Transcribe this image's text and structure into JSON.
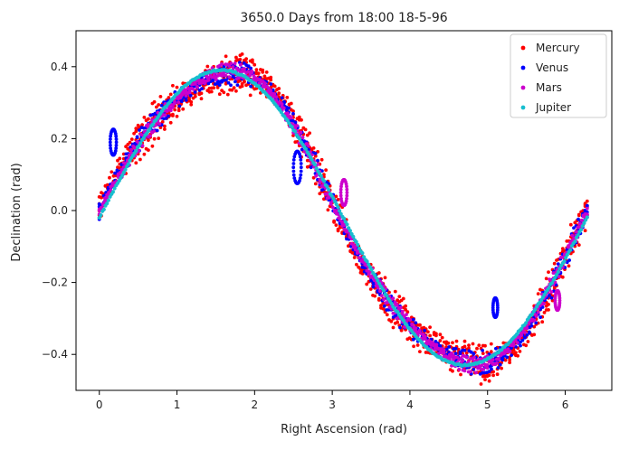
{
  "chart_data": {
    "type": "scatter",
    "title": "3650.0 Days from  18:00 18-5-96",
    "xlabel": "Right Ascension (rad)",
    "ylabel": "Declination (rad)",
    "xlim": [
      -0.3,
      6.6
    ],
    "ylim": [
      -0.5,
      0.5
    ],
    "xticks": [
      0,
      1,
      2,
      3,
      4,
      5,
      6
    ],
    "yticks": [
      -0.4,
      -0.2,
      0.0,
      0.2,
      0.4
    ],
    "xtick_labels": [
      "0",
      "1",
      "2",
      "3",
      "4",
      "5",
      "6"
    ],
    "ytick_labels": [
      "−0.4",
      "−0.2",
      "0.0",
      "0.2",
      "0.4"
    ],
    "legend_position": "top-right",
    "series": [
      {
        "name": "Mercury",
        "color": "#ff0000",
        "points_per_pass": 240,
        "passes": 4,
        "amplitude": 0.41,
        "scatter": 0.045,
        "offset": 0.0
      },
      {
        "name": "Venus",
        "color": "#0000ff",
        "points_per_pass": 220,
        "passes": 3,
        "amplitude": 0.41,
        "scatter": 0.03,
        "offset": 0.0,
        "loops": [
          {
            "x": 0.18,
            "y": 0.19,
            "r": 0.04
          },
          {
            "x": 2.55,
            "y": 0.12,
            "r": 0.05
          },
          {
            "x": 5.1,
            "y": -0.27,
            "r": 0.03
          }
        ]
      },
      {
        "name": "Mars",
        "color": "#cc00cc",
        "points_per_pass": 260,
        "passes": 3,
        "amplitude": 0.41,
        "scatter": 0.02,
        "offset": 0.0,
        "loops": [
          {
            "x": 3.15,
            "y": 0.05,
            "r": 0.04
          },
          {
            "x": 5.9,
            "y": -0.25,
            "r": 0.03
          }
        ]
      },
      {
        "name": "Jupiter",
        "color": "#17becf",
        "points_per_pass": 320,
        "passes": 1,
        "amplitude": 0.41,
        "scatter": 0.004,
        "offset": 0.0
      }
    ]
  }
}
